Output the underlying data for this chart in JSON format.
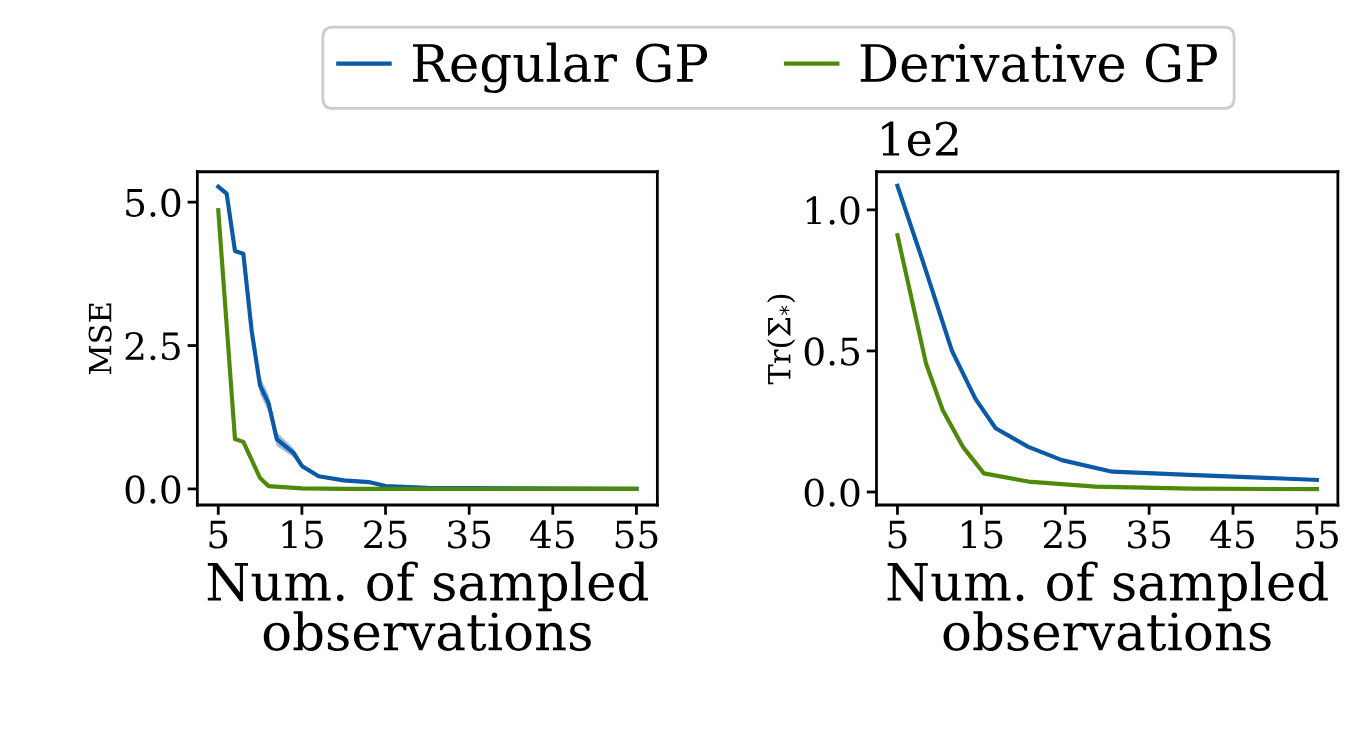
{
  "chart_data": [
    {
      "type": "line",
      "xlabel": "Num. of sampled\nobservations",
      "ylabel": "MSE",
      "xlim": [
        2.5,
        57.5
      ],
      "ylim": [
        -0.28,
        5.53
      ],
      "xticks": [
        5,
        15,
        25,
        35,
        45,
        55
      ],
      "yticks": [
        {
          "value": 0,
          "label": "0.0"
        },
        {
          "value": 2.5,
          "label": "2.5"
        },
        {
          "value": 5,
          "label": "5.0"
        }
      ],
      "legend": "top",
      "series": [
        {
          "name": "Regular GP",
          "color": "#0a5aa8",
          "x": [
            5,
            6,
            7,
            8,
            9,
            10,
            11,
            12,
            14,
            15,
            17,
            20,
            23,
            25,
            30,
            40,
            55
          ],
          "values": [
            5.27,
            5.15,
            4.15,
            4.1,
            2.75,
            1.8,
            1.5,
            0.87,
            0.63,
            0.4,
            0.22,
            0.15,
            0.12,
            0.05,
            0.02,
            0.01,
            0.0
          ],
          "lower": [
            5.25,
            5.13,
            4.13,
            4.08,
            2.7,
            1.65,
            1.35,
            0.75,
            0.55,
            0.36,
            0.2,
            0.14,
            0.11,
            0.04,
            0.01,
            0.0,
            0.0
          ],
          "upper": [
            5.29,
            5.17,
            4.17,
            4.12,
            2.8,
            1.95,
            1.65,
            0.99,
            0.71,
            0.44,
            0.24,
            0.16,
            0.13,
            0.06,
            0.03,
            0.02,
            0.0
          ]
        },
        {
          "name": "Derivative GP",
          "color": "#4e8a0a",
          "x": [
            5,
            7,
            8,
            10,
            11,
            15,
            20,
            30,
            55
          ],
          "values": [
            4.86,
            0.87,
            0.82,
            0.19,
            0.05,
            0.01,
            0.0,
            0.0,
            0.0
          ]
        }
      ]
    },
    {
      "type": "line",
      "xlabel": "Num. of sampled\nobservations",
      "ylabel": "Tr(Σ$_{*}$)",
      "annotations": [
        "1e2"
      ],
      "xlim": [
        2.5,
        57.5
      ],
      "ylim": [
        -0.046,
        1.135
      ],
      "xticks": [
        5,
        15,
        25,
        35,
        45,
        55
      ],
      "yticks": [
        {
          "value": 0,
          "label": "0.0"
        },
        {
          "value": 0.5,
          "label": "0.5"
        },
        {
          "value": 1.0,
          "label": "1.0"
        }
      ],
      "series": [
        {
          "color": "#0a5aa8",
          "x": [
            5,
            8,
            11.5,
            14.3,
            16.7,
            20.6,
            24.6,
            30.6,
            40.5,
            55
          ],
          "values": [
            1.085,
            0.82,
            0.5,
            0.33,
            0.226,
            0.16,
            0.113,
            0.072,
            0.06,
            0.043
          ]
        },
        {
          "color": "#4e8a0a",
          "x": [
            5,
            6.8,
            8.4,
            10.4,
            12.8,
            15.3,
            20.6,
            28.6,
            40,
            55
          ],
          "values": [
            0.91,
            0.67,
            0.456,
            0.29,
            0.16,
            0.066,
            0.037,
            0.019,
            0.012,
            0.01
          ]
        }
      ]
    }
  ]
}
